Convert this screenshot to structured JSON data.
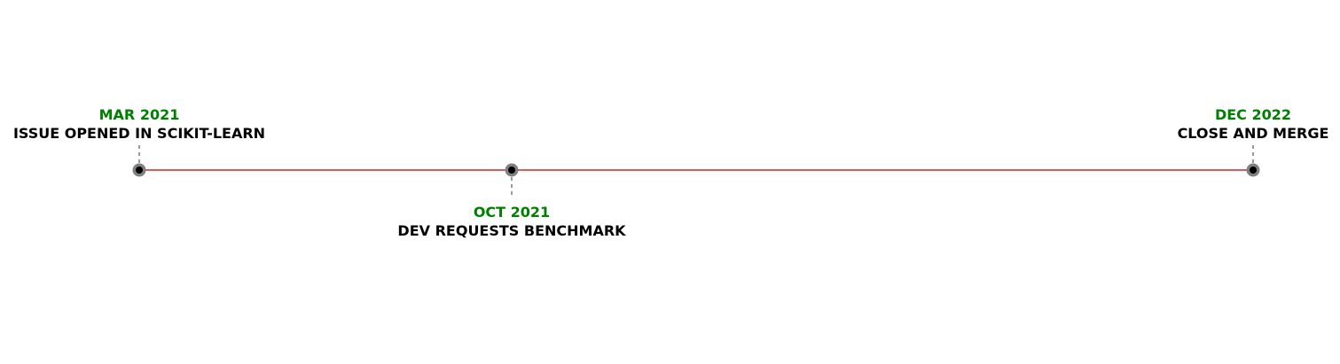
{
  "colors": {
    "timeline_line": "#c62828",
    "marker_outer": "#808080",
    "marker_inner": "#000000",
    "connector": "#808080",
    "date_text": "#008000",
    "event_text": "#000000"
  },
  "events": [
    {
      "date": "MAR 2021",
      "label": "ISSUE OPENED IN SCIKIT-LEARN",
      "side": "above"
    },
    {
      "date": "OCT 2021",
      "label": "DEV REQUESTS BENCHMARK",
      "side": "below"
    },
    {
      "date": "DEC 2022",
      "label": "CLOSE AND MERGE",
      "side": "above"
    }
  ]
}
